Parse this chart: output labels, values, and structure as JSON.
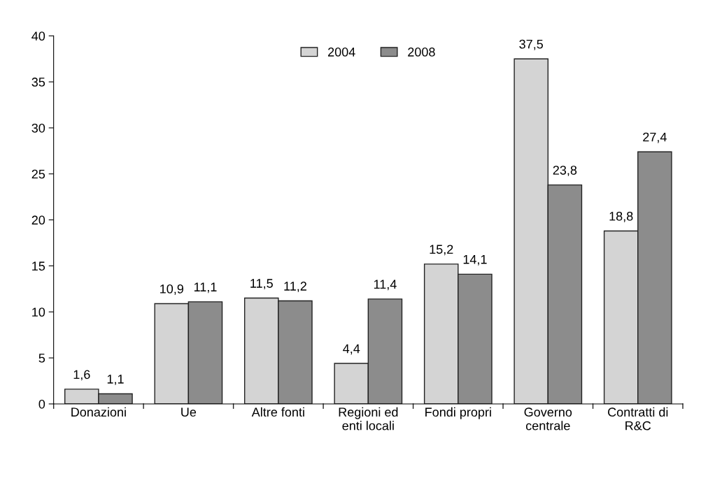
{
  "chart_data": {
    "type": "bar",
    "categories": [
      "Donazioni",
      "Ue",
      "Altre fonti",
      "Regioni ed\nenti locali",
      "Fondi propri",
      "Governo\ncentrale",
      "Contratti di\nR&C"
    ],
    "series": [
      {
        "name": "2004",
        "color": "#d4d4d4",
        "values": [
          1.6,
          10.9,
          11.5,
          4.4,
          15.2,
          37.5,
          18.8
        ],
        "value_labels": [
          "1,6",
          "10,9",
          "11,5",
          "4,4",
          "15,2",
          "37,5",
          "18,8"
        ]
      },
      {
        "name": "2008",
        "color": "#8c8c8c",
        "values": [
          1.1,
          11.1,
          11.2,
          11.4,
          14.1,
          23.8,
          27.4
        ],
        "value_labels": [
          "1,1",
          "11,1",
          "11,2",
          "11,4",
          "14,1",
          "23,8",
          "27,4"
        ]
      }
    ],
    "ylim": [
      0,
      40
    ],
    "yticks": [
      0,
      5,
      10,
      15,
      20,
      25,
      30,
      35,
      40
    ],
    "grid": false,
    "legend": "top"
  }
}
